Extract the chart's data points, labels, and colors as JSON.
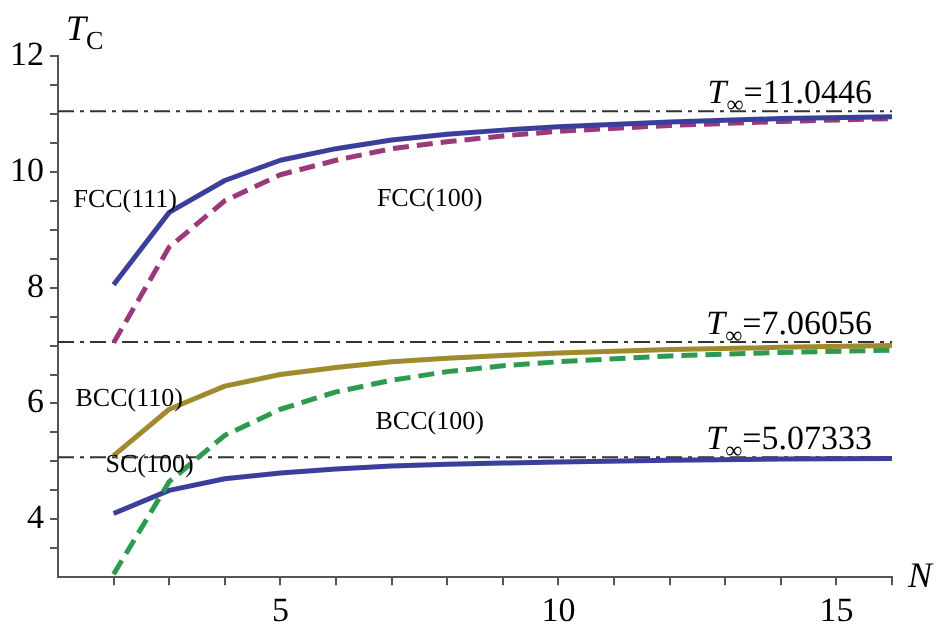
{
  "chart_data": {
    "type": "line",
    "xlabel": "N",
    "ylabel": "T$_{C}$",
    "x": [
      2,
      3,
      4,
      5,
      6,
      7,
      8,
      9,
      10,
      12,
      14,
      16
    ],
    "series": [
      {
        "name": "FCC(111)",
        "color": "#3b3f9c",
        "line_style": "solid",
        "values": [
          8.05,
          9.3,
          9.85,
          10.2,
          10.4,
          10.55,
          10.65,
          10.72,
          10.78,
          10.86,
          10.92,
          10.95
        ]
      },
      {
        "name": "FCC(100)",
        "color": "#9b3a7a",
        "line_style": "dashed",
        "values": [
          7.05,
          8.7,
          9.5,
          9.95,
          10.2,
          10.4,
          10.52,
          10.62,
          10.7,
          10.8,
          10.87,
          10.92
        ]
      },
      {
        "name": "BCC(110)",
        "color": "#a08a2e",
        "line_style": "solid",
        "values": [
          5.1,
          5.9,
          6.3,
          6.5,
          6.62,
          6.72,
          6.78,
          6.83,
          6.87,
          6.93,
          6.97,
          7.0
        ]
      },
      {
        "name": "BCC(100)",
        "color": "#2e9a50",
        "line_style": "dashed",
        "values": [
          3.05,
          4.65,
          5.45,
          5.9,
          6.2,
          6.4,
          6.55,
          6.65,
          6.72,
          6.82,
          6.88,
          6.92
        ]
      },
      {
        "name": "SC(100)",
        "color": "#3b3f9c",
        "line_style": "solid",
        "values": [
          4.1,
          4.5,
          4.7,
          4.8,
          4.87,
          4.92,
          4.95,
          4.97,
          4.99,
          5.02,
          5.04,
          5.05
        ]
      }
    ],
    "xlim": [
      1,
      16
    ],
    "xticks": [
      {
        "value": 2,
        "label": null
      },
      {
        "value": 3,
        "label": null
      },
      {
        "value": 4,
        "label": null
      },
      5,
      {
        "value": 6,
        "label": null
      },
      {
        "value": 7,
        "label": null
      },
      {
        "value": 8,
        "label": null
      },
      {
        "value": 9,
        "label": null
      },
      10,
      {
        "value": 11,
        "label": null
      },
      {
        "value": 12,
        "label": null
      },
      {
        "value": 13,
        "label": null
      },
      {
        "value": 14,
        "label": null
      },
      15,
      {
        "value": 16,
        "label": null
      }
    ],
    "ylim": [
      3,
      12
    ],
    "yticks": [
      {
        "value": 3.5,
        "label": null
      },
      4,
      {
        "value": 4.5,
        "label": null
      },
      {
        "value": 5,
        "label": null
      },
      {
        "value": 5.5,
        "label": null
      },
      6,
      {
        "value": 6.5,
        "label": null
      },
      {
        "value": 7,
        "label": null
      },
      {
        "value": 7.5,
        "label": null
      },
      8,
      {
        "value": 8.5,
        "label": null
      },
      {
        "value": 9,
        "label": null
      },
      {
        "value": 9.5,
        "label": null
      },
      10,
      {
        "value": 10.5,
        "label": null
      },
      {
        "value": 11,
        "label": null
      },
      {
        "value": 11.5,
        "label": null
      },
      12
    ],
    "ref_lines": [
      {
        "axis": "y",
        "value": 11.0446,
        "label": "T$_{∞}$=11.0446",
        "color": "#333333",
        "line_style": "dashdot"
      },
      {
        "axis": "y",
        "value": 7.06056,
        "label": "T$_{∞}$=7.06056",
        "color": "#333333",
        "line_style": "dashdot"
      },
      {
        "axis": "y",
        "value": 5.07333,
        "label": "T$_{∞}$=5.07333",
        "color": "#333333",
        "line_style": "dashdot"
      }
    ],
    "grid": false,
    "legend": false,
    "marker": "none"
  }
}
